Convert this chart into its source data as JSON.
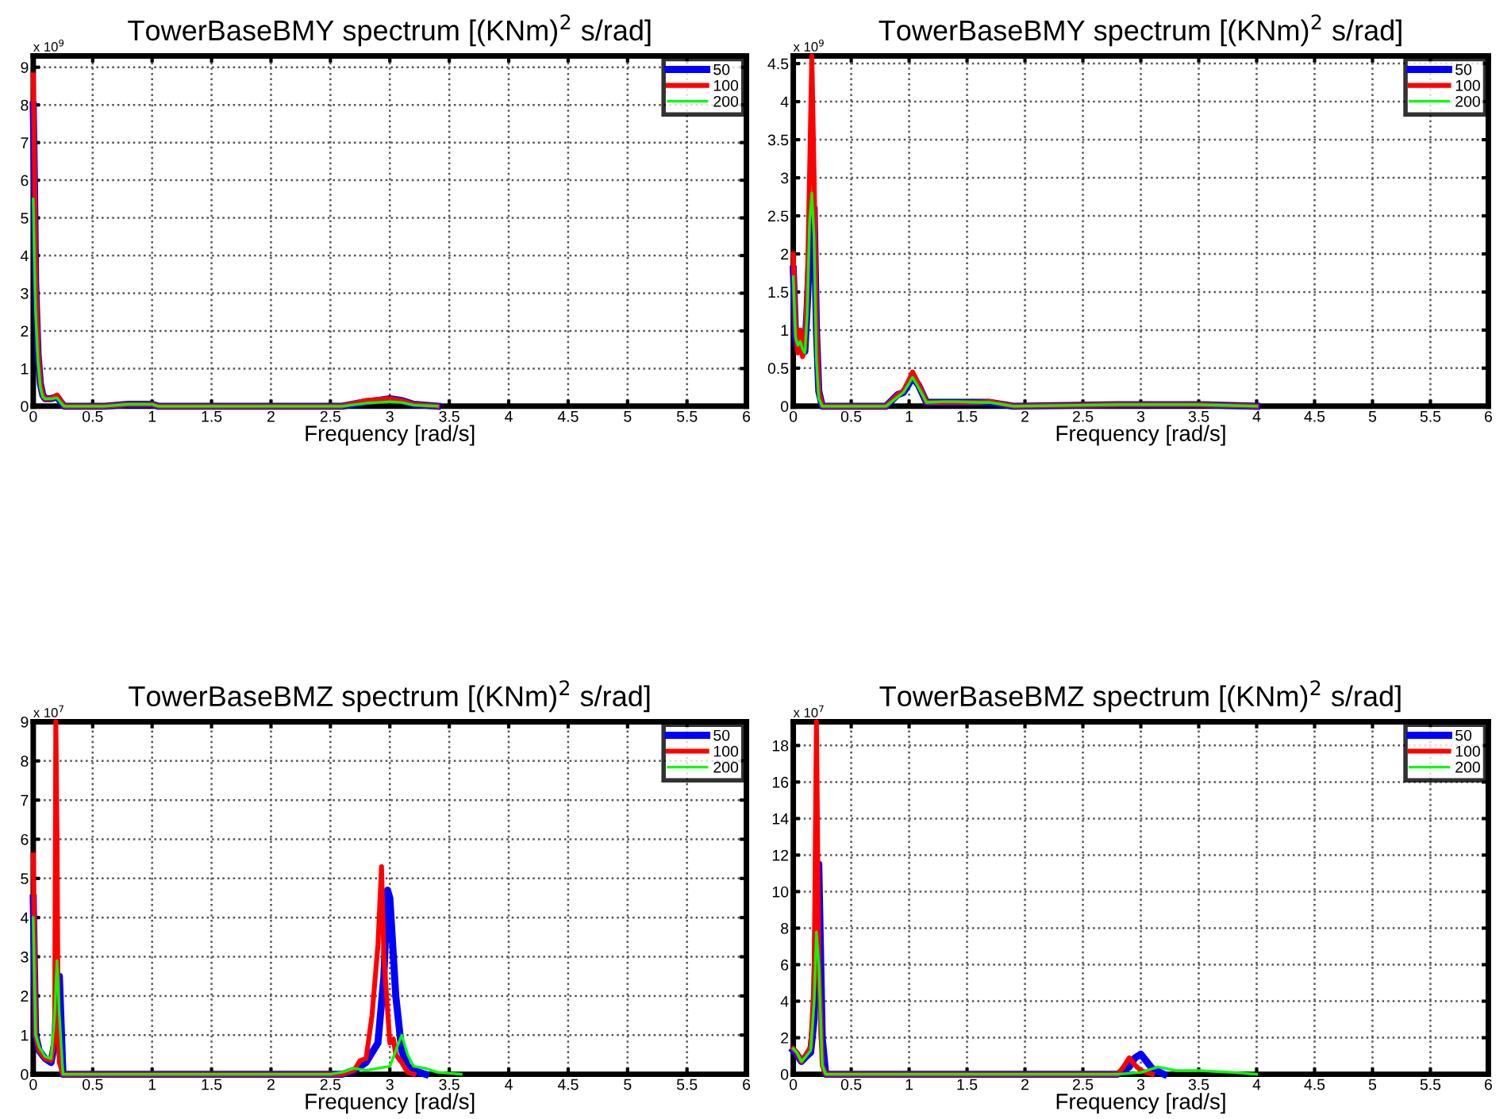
{
  "chart_data": [
    {
      "type": "line",
      "title": "TowerBaseBMY spectrum [(KNm)$^{2}$ s/rad]",
      "xlabel": "Frequency [rad/s]",
      "annotations": [
        "x 10$^{9}$"
      ],
      "xlim": [
        0,
        6
      ],
      "xticks": [
        0,
        0.5,
        1,
        1.5,
        2,
        2.5,
        3,
        3.5,
        4,
        4.5,
        5,
        5.5,
        6
      ],
      "ylim": [
        0,
        9.3
      ],
      "yticks": [
        0,
        1,
        2,
        3,
        4,
        5,
        6,
        7,
        8,
        9
      ],
      "grid": true,
      "legend": "top right",
      "series": [
        {
          "name": "50",
          "color": "#0000ff",
          "x": [
            0,
            0.01,
            0.02,
            0.04,
            0.06,
            0.08,
            0.1,
            0.15,
            0.2,
            0.23,
            0.26,
            0.6,
            0.8,
            1.0,
            1.05,
            2.6,
            2.8,
            2.9,
            3.0,
            3.1,
            3.2,
            3.4
          ],
          "values": [
            8.0,
            6.0,
            3.3,
            1.4,
            0.6,
            0.3,
            0.2,
            0.2,
            0.25,
            0.12,
            0,
            0,
            0.05,
            0.05,
            0,
            0,
            0.12,
            0.15,
            0.2,
            0.15,
            0.05,
            0
          ]
        },
        {
          "name": "100",
          "color": "#ff0000",
          "x": [
            0,
            0.01,
            0.02,
            0.04,
            0.06,
            0.08,
            0.1,
            0.15,
            0.2,
            0.23,
            0.26,
            0.6,
            0.8,
            1.0,
            1.05,
            2.6,
            2.8,
            2.9,
            3.0,
            3.1,
            3.2,
            3.4
          ],
          "values": [
            8.8,
            6.5,
            3.5,
            1.5,
            0.6,
            0.3,
            0.2,
            0.2,
            0.3,
            0.15,
            0,
            0,
            0.05,
            0.05,
            0,
            0,
            0.15,
            0.18,
            0.2,
            0.15,
            0.05,
            0
          ]
        },
        {
          "name": "200",
          "color": "#00ff00",
          "x": [
            0,
            0.01,
            0.02,
            0.04,
            0.06,
            0.08,
            0.1,
            0.15,
            0.2,
            0.23,
            0.26,
            0.6,
            0.8,
            1.0,
            1.05,
            2.6,
            2.8,
            2.9,
            3.0,
            3.1,
            3.2,
            3.4
          ],
          "values": [
            5.5,
            4.0,
            2.5,
            1.2,
            0.5,
            0.25,
            0.2,
            0.2,
            0.22,
            0.1,
            0,
            0,
            0.05,
            0.05,
            0,
            0,
            0.08,
            0.1,
            0.12,
            0.1,
            0.03,
            0
          ]
        }
      ]
    },
    {
      "type": "line",
      "title": "TowerBaseBMY spectrum [(KNm)$^{2}$ s/rad]",
      "xlabel": "Frequency [rad/s]",
      "annotations": [
        "x 10$^{9}$"
      ],
      "xlim": [
        0,
        6
      ],
      "xticks": [
        0,
        0.5,
        1,
        1.5,
        2,
        2.5,
        3,
        3.5,
        4,
        4.5,
        5,
        5.5,
        6
      ],
      "ylim": [
        0,
        4.6
      ],
      "yticks": [
        0,
        0.5,
        1,
        1.5,
        2,
        2.5,
        3,
        3.5,
        4,
        4.5
      ],
      "grid": true,
      "legend": "top right",
      "series": [
        {
          "name": "50",
          "color": "#0000ff",
          "x": [
            0,
            0.02,
            0.04,
            0.06,
            0.08,
            0.1,
            0.12,
            0.14,
            0.16,
            0.18,
            0.2,
            0.22,
            0.25,
            0.8,
            0.9,
            0.95,
            1.0,
            1.03,
            1.08,
            1.15,
            1.3,
            1.4,
            1.6,
            1.7,
            1.9,
            2.8,
            3.5,
            4.0
          ],
          "values": [
            1.8,
            0.9,
            0.75,
            0.9,
            0.7,
            0.72,
            1.3,
            2.0,
            2.5,
            2.6,
            1.0,
            0.2,
            0,
            0,
            0.15,
            0.18,
            0.3,
            0.38,
            0.28,
            0.05,
            0.05,
            0.05,
            0.05,
            0.05,
            0,
            0.02,
            0.02,
            0
          ]
        },
        {
          "name": "100",
          "color": "#ff0000",
          "x": [
            0,
            0.02,
            0.04,
            0.06,
            0.08,
            0.1,
            0.12,
            0.14,
            0.16,
            0.18,
            0.2,
            0.22,
            0.25,
            0.8,
            0.9,
            0.95,
            1.0,
            1.03,
            1.08,
            1.15,
            1.3,
            1.4,
            1.6,
            1.7,
            1.9,
            2.8,
            3.5,
            4.0
          ],
          "values": [
            2.0,
            1.0,
            0.7,
            1.0,
            0.65,
            0.75,
            1.5,
            3.0,
            4.6,
            3.0,
            1.0,
            0.2,
            0,
            0,
            0.15,
            0.2,
            0.35,
            0.45,
            0.3,
            0.05,
            0.05,
            0.05,
            0.05,
            0.06,
            0,
            0.02,
            0.02,
            0
          ]
        },
        {
          "name": "200",
          "color": "#00ff00",
          "x": [
            0,
            0.02,
            0.04,
            0.06,
            0.08,
            0.1,
            0.12,
            0.14,
            0.16,
            0.18,
            0.2,
            0.22,
            0.25,
            0.8,
            0.9,
            0.95,
            1.0,
            1.03,
            1.08,
            1.15,
            1.3,
            1.4,
            1.6,
            1.7,
            1.9,
            2.8,
            3.5,
            4.0
          ],
          "values": [
            1.7,
            0.9,
            0.8,
            0.85,
            0.75,
            0.7,
            1.2,
            2.4,
            2.8,
            2.2,
            0.6,
            0.1,
            0,
            0,
            0.12,
            0.18,
            0.3,
            0.38,
            0.25,
            0.05,
            0.06,
            0.06,
            0.05,
            0.05,
            0,
            0.02,
            0.02,
            0
          ]
        }
      ]
    },
    {
      "type": "line",
      "title": "TowerBaseBMZ spectrum [(KNm)$^{2}$ s/rad]",
      "xlabel": "Frequency [rad/s]",
      "annotations": [
        "x 10$^{7}$"
      ],
      "xlim": [
        0,
        6
      ],
      "xticks": [
        0,
        0.5,
        1,
        1.5,
        2,
        2.5,
        3,
        3.5,
        4,
        4.5,
        5,
        5.5,
        6
      ],
      "ylim": [
        0,
        9
      ],
      "yticks": [
        0,
        1,
        2,
        3,
        4,
        5,
        6,
        7,
        8,
        9
      ],
      "grid": true,
      "legend": "top right",
      "series": [
        {
          "name": "50",
          "color": "#0000ff",
          "x": [
            0,
            0.02,
            0.05,
            0.1,
            0.15,
            0.18,
            0.2,
            0.22,
            0.25,
            2.6,
            2.7,
            2.8,
            2.9,
            2.95,
            2.98,
            3.0,
            3.05,
            3.1,
            3.15,
            3.2,
            3.3
          ],
          "values": [
            4.5,
            1.0,
            0.6,
            0.4,
            0.3,
            0.8,
            2.0,
            2.5,
            0,
            0,
            0.1,
            0.3,
            0.8,
            2.5,
            4.7,
            4.5,
            2.0,
            0.6,
            0.2,
            0.1,
            0
          ]
        },
        {
          "name": "100",
          "color": "#ff0000",
          "x": [
            0,
            0.02,
            0.05,
            0.1,
            0.15,
            0.18,
            0.19,
            0.2,
            0.21,
            0.22,
            0.25,
            2.6,
            2.7,
            2.75,
            2.8,
            2.85,
            2.9,
            2.93,
            2.95,
            3.0,
            3.03,
            3.05,
            3.1,
            3.15,
            3.2
          ],
          "values": [
            5.6,
            1.0,
            0.6,
            0.4,
            0.35,
            1.0,
            9.0,
            6.0,
            1.0,
            0.3,
            0,
            0,
            0.1,
            0.35,
            0.4,
            1.5,
            3.3,
            5.3,
            3.0,
            0.8,
            0.9,
            0.5,
            0.3,
            0.05,
            0
          ]
        },
        {
          "name": "200",
          "color": "#00ff00",
          "x": [
            0,
            0.02,
            0.05,
            0.1,
            0.15,
            0.18,
            0.2,
            0.22,
            0.25,
            2.5,
            2.6,
            2.7,
            2.8,
            2.9,
            3.0,
            3.05,
            3.1,
            3.15,
            3.2,
            3.3,
            3.4,
            3.6
          ],
          "values": [
            4.0,
            1.0,
            0.7,
            0.45,
            0.4,
            1.5,
            2.9,
            1.5,
            0,
            0,
            0.05,
            0.15,
            0.1,
            0.15,
            0.2,
            0.6,
            1.0,
            0.5,
            0.2,
            0.15,
            0.05,
            0
          ]
        }
      ]
    },
    {
      "type": "line",
      "title": "TowerBaseBMZ spectrum [(KNm)$^{2}$ s/rad]",
      "xlabel": "Frequency [rad/s]",
      "annotations": [
        "x 10$^{7}$"
      ],
      "xlim": [
        0,
        6
      ],
      "xticks": [
        0,
        0.5,
        1,
        1.5,
        2,
        2.5,
        3,
        3.5,
        4,
        4.5,
        5,
        5.5,
        6
      ],
      "ylim": [
        0,
        19.3
      ],
      "yticks": [
        0,
        2,
        4,
        6,
        8,
        10,
        12,
        14,
        16,
        18
      ],
      "grid": true,
      "legend": "top right",
      "series": [
        {
          "name": "50",
          "color": "#0000ff",
          "x": [
            0,
            0.03,
            0.07,
            0.1,
            0.15,
            0.18,
            0.2,
            0.22,
            0.25,
            0.28,
            2.8,
            2.9,
            2.95,
            3.0,
            3.05,
            3.1,
            3.2
          ],
          "values": [
            1.3,
            1.1,
            0.7,
            0.9,
            1.2,
            3.0,
            9.0,
            11.5,
            2.0,
            0,
            0,
            0.4,
            0.9,
            1.1,
            0.7,
            0.3,
            0
          ]
        },
        {
          "name": "100",
          "color": "#ff0000",
          "x": [
            0,
            0.03,
            0.07,
            0.1,
            0.15,
            0.18,
            0.2,
            0.22,
            0.25,
            0.28,
            2.8,
            2.85,
            2.9,
            2.95,
            3.0,
            3.1
          ],
          "values": [
            1.4,
            1.2,
            0.7,
            1.0,
            1.5,
            5.0,
            19.3,
            6.0,
            0.5,
            0,
            0,
            0.4,
            0.9,
            0.5,
            0.2,
            0
          ]
        },
        {
          "name": "200",
          "color": "#00ff00",
          "x": [
            0,
            0.03,
            0.07,
            0.1,
            0.15,
            0.18,
            0.2,
            0.22,
            0.25,
            0.28,
            2.8,
            3.0,
            3.1,
            3.15,
            3.3,
            3.5,
            3.8,
            4.0
          ],
          "values": [
            1.4,
            1.2,
            0.7,
            0.9,
            1.3,
            4.0,
            7.8,
            6.0,
            0.5,
            0,
            0,
            0.1,
            0.3,
            0.4,
            0.2,
            0.2,
            0.1,
            0
          ]
        }
      ]
    }
  ]
}
